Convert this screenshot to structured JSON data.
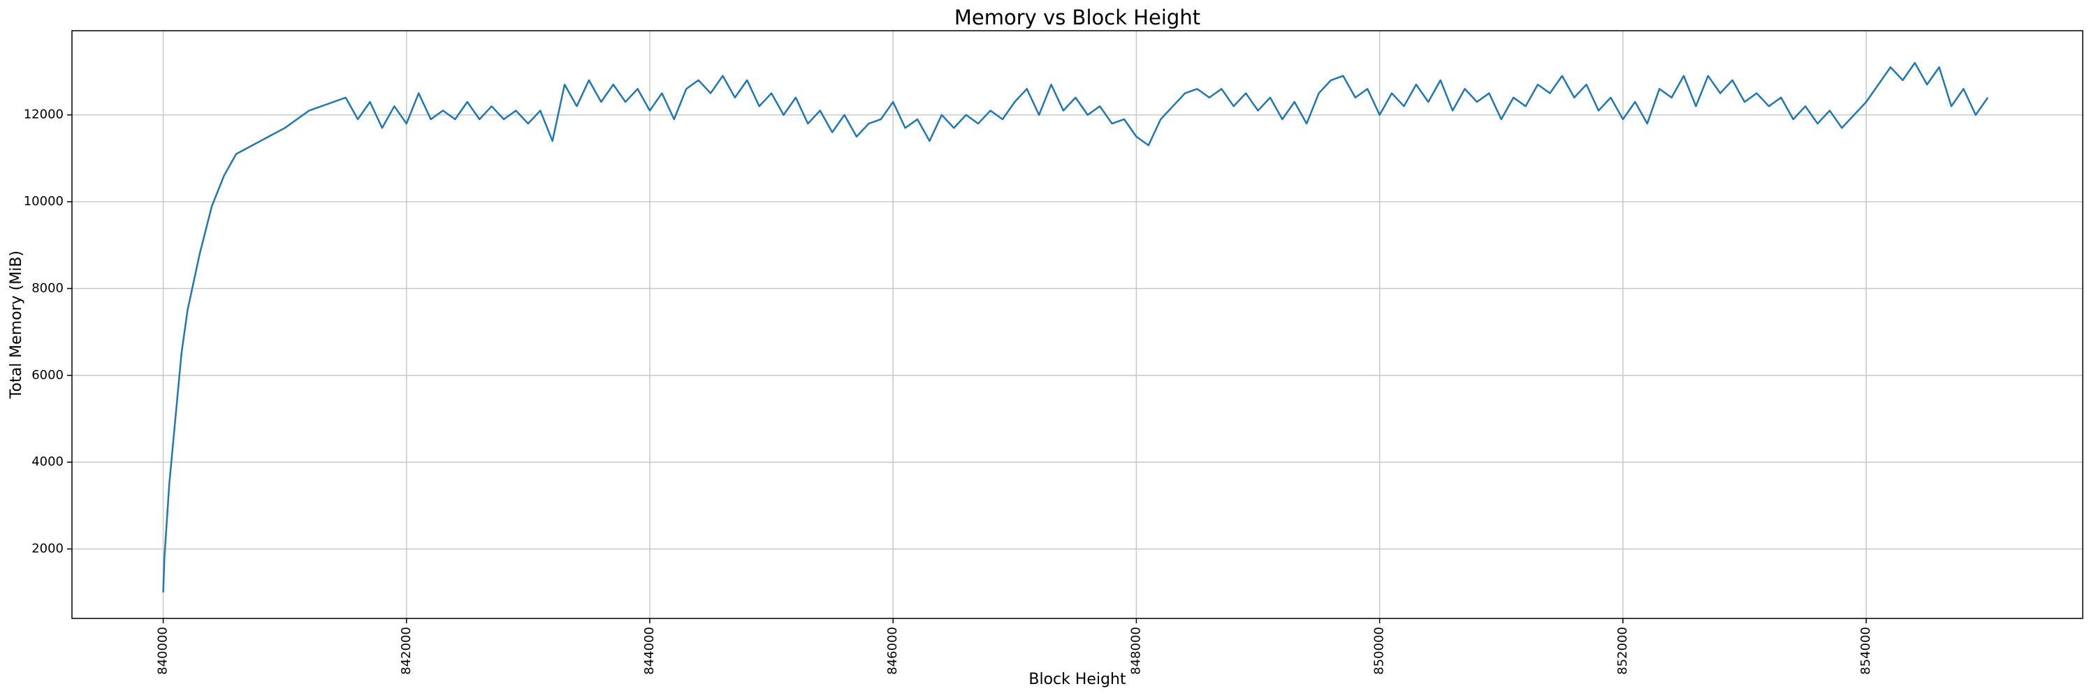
{
  "chart_data": {
    "type": "line",
    "title": "Memory vs Block Height",
    "x_label": "Block Height",
    "y_label": "Total Memory (MiB)",
    "color": "#1f77b4",
    "grid": true,
    "xlim": [
      839250,
      855780
    ],
    "ylim": [
      400,
      13940
    ],
    "xticks": [
      840000,
      842000,
      844000,
      846000,
      848000,
      850000,
      852000,
      854000
    ],
    "yticks": [
      2000,
      4000,
      6000,
      8000,
      10000,
      12000
    ],
    "x": [
      840000,
      840010,
      840050,
      840100,
      840150,
      840200,
      840300,
      840400,
      840500,
      840600,
      840800,
      841000,
      841200,
      841400,
      841500,
      841600,
      841700,
      841800,
      841900,
      842000,
      842100,
      842200,
      842300,
      842400,
      842500,
      842600,
      842700,
      842800,
      842900,
      843000,
      843100,
      843200,
      843300,
      843400,
      843500,
      843600,
      843700,
      843800,
      843900,
      844000,
      844100,
      844200,
      844300,
      844400,
      844500,
      844600,
      844700,
      844800,
      844900,
      845000,
      845100,
      845200,
      845300,
      845400,
      845500,
      845600,
      845700,
      845800,
      845900,
      846000,
      846100,
      846200,
      846300,
      846400,
      846500,
      846600,
      846700,
      846800,
      846900,
      847000,
      847100,
      847200,
      847300,
      847400,
      847500,
      847600,
      847700,
      847800,
      847900,
      848000,
      848100,
      848200,
      848300,
      848400,
      848500,
      848600,
      848700,
      848800,
      848900,
      849000,
      849100,
      849200,
      849300,
      849400,
      849500,
      849600,
      849700,
      849800,
      849900,
      850000,
      850100,
      850200,
      850300,
      850400,
      850500,
      850600,
      850700,
      850800,
      850900,
      851000,
      851100,
      851200,
      851300,
      851400,
      851500,
      851600,
      851700,
      851800,
      851900,
      852000,
      852100,
      852200,
      852300,
      852400,
      852500,
      852600,
      852700,
      852800,
      852900,
      853000,
      853100,
      853200,
      853300,
      853400,
      853500,
      853600,
      853700,
      853800,
      853900,
      854000,
      854100,
      854200,
      854300,
      854400,
      854500,
      854600,
      854700,
      854800,
      854900,
      855000
    ],
    "values": [
      1000,
      1800,
      3500,
      5000,
      6500,
      7500,
      8800,
      9900,
      10600,
      11100,
      11400,
      11700,
      12100,
      12300,
      12400,
      11900,
      12300,
      11700,
      12200,
      11800,
      12500,
      11900,
      12100,
      11900,
      12300,
      11900,
      12200,
      11900,
      12100,
      11800,
      12100,
      11400,
      12700,
      12200,
      12800,
      12300,
      12700,
      12300,
      12600,
      12100,
      12500,
      11900,
      12600,
      12800,
      12500,
      12900,
      12400,
      12800,
      12200,
      12500,
      12000,
      12400,
      11800,
      12100,
      11600,
      12000,
      11500,
      11800,
      11900,
      12300,
      11700,
      11900,
      11400,
      12000,
      11700,
      12000,
      11800,
      12100,
      11900,
      12300,
      12600,
      12000,
      12700,
      12100,
      12400,
      12000,
      12200,
      11800,
      11900,
      11500,
      11300,
      11900,
      12200,
      12500,
      12600,
      12400,
      12600,
      12200,
      12500,
      12100,
      12400,
      11900,
      12300,
      11800,
      12500,
      12800,
      12900,
      12400,
      12600,
      12000,
      12500,
      12200,
      12700,
      12300,
      12800,
      12100,
      12600,
      12300,
      12500,
      11900,
      12400,
      12200,
      12700,
      12500,
      12900,
      12400,
      12700,
      12100,
      12400,
      11900,
      12300,
      11800,
      12600,
      12400,
      12900,
      12200,
      12900,
      12500,
      12800,
      12300,
      12500,
      12200,
      12400,
      11900,
      12200,
      11800,
      12100,
      11700,
      12000,
      12300,
      12700,
      13100,
      12800,
      13200,
      12700,
      13100,
      12200,
      12600,
      12000,
      12400
    ]
  }
}
